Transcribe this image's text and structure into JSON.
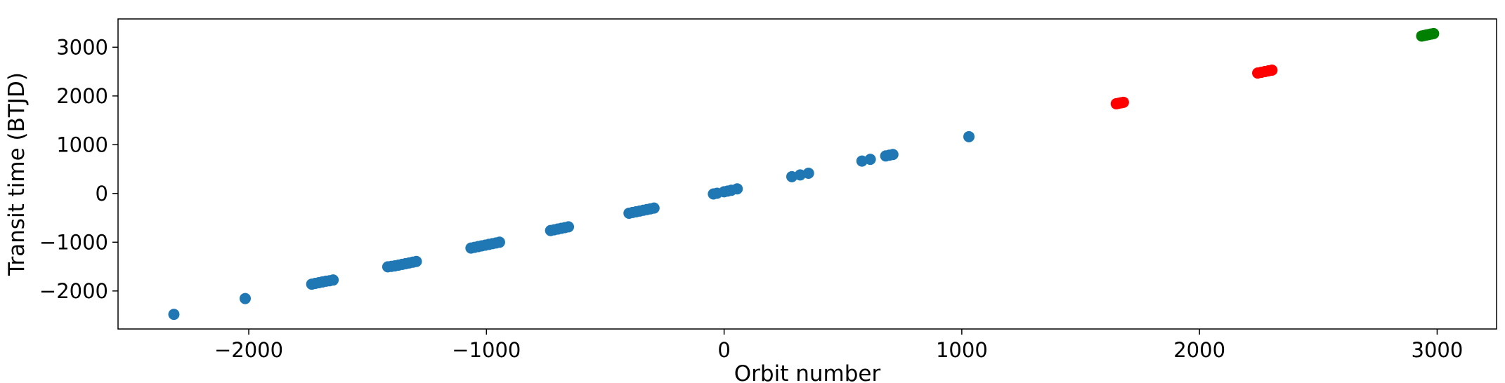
{
  "chart_data": {
    "type": "scatter",
    "title": "",
    "xlabel": "Orbit number",
    "ylabel": "Transit time (BTJD)",
    "xlim": [
      -2550,
      3250
    ],
    "ylim": [
      -2780,
      3580
    ],
    "xticks": [
      -2000,
      -1000,
      0,
      1000,
      2000,
      3000
    ],
    "xtick_labels": [
      "−2000",
      "−1000",
      "0",
      "1000",
      "2000",
      "3000"
    ],
    "yticks": [
      -2000,
      -1000,
      0,
      1000,
      2000,
      3000
    ],
    "ytick_labels": [
      "−2000",
      "−1000",
      "0",
      "1000",
      "2000",
      "3000"
    ],
    "grid": false,
    "legend": false,
    "series": [
      {
        "color": "#1f77b4",
        "points": [
          [
            -2315,
            -2480
          ],
          [
            -2015,
            -2155
          ],
          [
            -1735,
            -1860
          ],
          [
            -1720,
            -1845
          ],
          [
            -1705,
            -1830
          ],
          [
            -1690,
            -1815
          ],
          [
            -1675,
            -1800
          ],
          [
            -1660,
            -1790
          ],
          [
            -1645,
            -1775
          ],
          [
            -1415,
            -1505
          ],
          [
            -1400,
            -1495
          ],
          [
            -1385,
            -1485
          ],
          [
            -1370,
            -1470
          ],
          [
            -1355,
            -1455
          ],
          [
            -1340,
            -1440
          ],
          [
            -1325,
            -1425
          ],
          [
            -1310,
            -1410
          ],
          [
            -1295,
            -1395
          ],
          [
            -1065,
            -1120
          ],
          [
            -1050,
            -1105
          ],
          [
            -1035,
            -1090
          ],
          [
            -1020,
            -1075
          ],
          [
            -1005,
            -1060
          ],
          [
            -990,
            -1045
          ],
          [
            -975,
            -1030
          ],
          [
            -960,
            -1015
          ],
          [
            -945,
            -1000
          ],
          [
            -730,
            -760
          ],
          [
            -715,
            -745
          ],
          [
            -700,
            -730
          ],
          [
            -685,
            -715
          ],
          [
            -670,
            -700
          ],
          [
            -655,
            -685
          ],
          [
            -400,
            -405
          ],
          [
            -385,
            -390
          ],
          [
            -370,
            -375
          ],
          [
            -355,
            -360
          ],
          [
            -340,
            -345
          ],
          [
            -325,
            -330
          ],
          [
            -310,
            -315
          ],
          [
            -295,
            -300
          ],
          [
            -45,
            -10
          ],
          [
            -30,
            5
          ],
          [
            0,
            35
          ],
          [
            15,
            50
          ],
          [
            30,
            65
          ],
          [
            55,
            95
          ],
          [
            285,
            345
          ],
          [
            320,
            380
          ],
          [
            355,
            415
          ],
          [
            580,
            665
          ],
          [
            615,
            700
          ],
          [
            680,
            770
          ],
          [
            695,
            785
          ],
          [
            710,
            800
          ],
          [
            1030,
            1165
          ]
        ]
      },
      {
        "color": "#ff0000",
        "points": [
          [
            1650,
            1840
          ],
          [
            1660,
            1850
          ],
          [
            1670,
            1860
          ],
          [
            1680,
            1870
          ],
          [
            2245,
            2470
          ],
          [
            2260,
            2485
          ],
          [
            2275,
            2500
          ],
          [
            2290,
            2515
          ],
          [
            2305,
            2530
          ]
        ]
      },
      {
        "color": "#008000",
        "points": [
          [
            2935,
            3230
          ],
          [
            2945,
            3240
          ],
          [
            2955,
            3250
          ],
          [
            2965,
            3260
          ],
          [
            2975,
            3270
          ],
          [
            2985,
            3280
          ]
        ]
      }
    ]
  }
}
